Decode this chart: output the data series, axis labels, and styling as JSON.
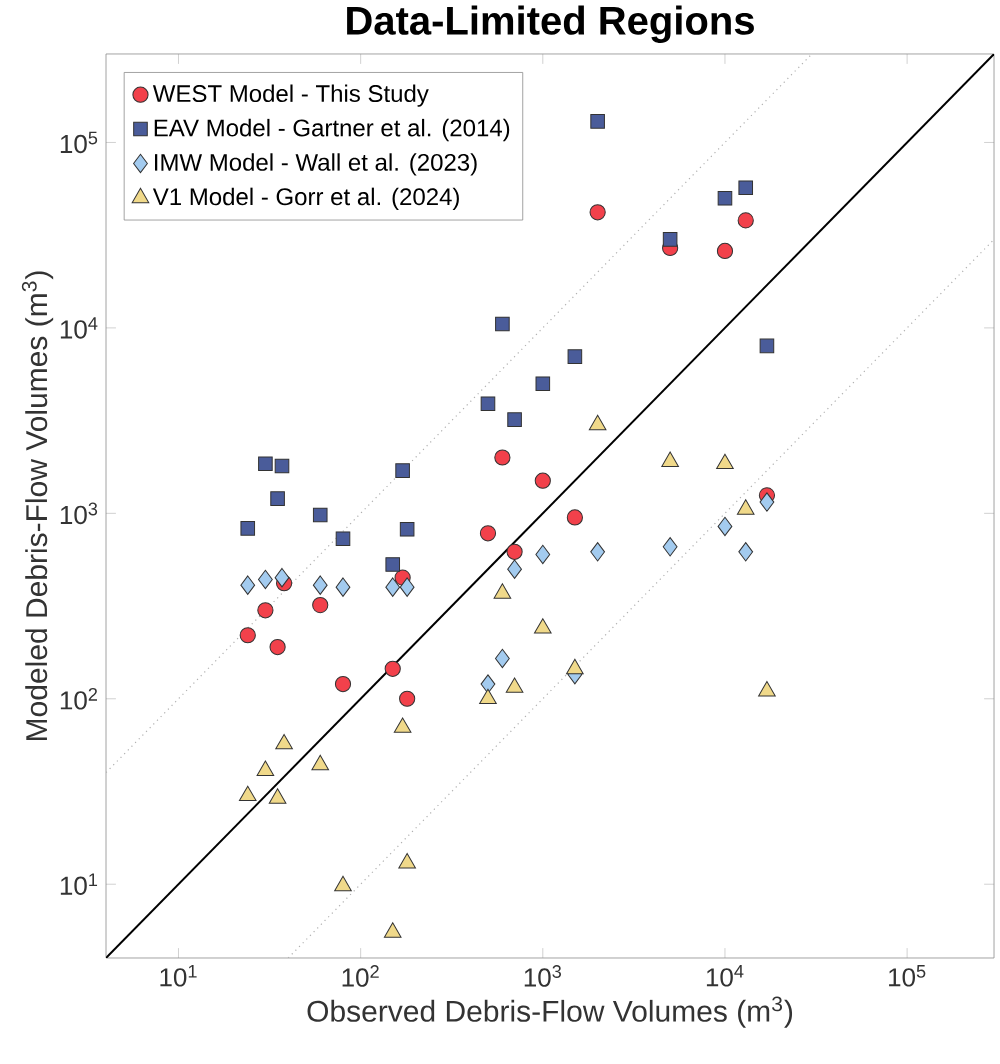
{
  "chart_data": {
    "type": "scatter",
    "title": "Data-Limited Regions",
    "xlabel": "Observed Debris-Flow Volumes (m$^{3}$)",
    "ylabel": "Modeled Debris-Flow Volumes (m$^{3}$)",
    "log": "xy",
    "xlim": [
      4,
      300000
    ],
    "ylim": [
      4,
      300000
    ],
    "xticks": [
      {
        "value": 10,
        "label": "10$^{1}$"
      },
      {
        "value": 100,
        "label": "10$^{2}$"
      },
      {
        "value": 1000,
        "label": "10$^{3}$"
      },
      {
        "value": 10000,
        "label": "10$^{4}$"
      },
      {
        "value": 100000,
        "label": "10$^{5}$"
      }
    ],
    "yticks": [
      {
        "value": 10,
        "label": "10$^{1}$"
      },
      {
        "value": 100,
        "label": "10$^{2}$"
      },
      {
        "value": 1000,
        "label": "10$^{3}$"
      },
      {
        "value": 10000,
        "label": "10$^{4}$"
      },
      {
        "value": 100000,
        "label": "10$^{5}$"
      }
    ],
    "grid": false,
    "legend": "top left",
    "series": [
      {
        "type": "line",
        "color": "#000000",
        "line_style": "solid",
        "marker": "none",
        "x": [
          4,
          300000
        ],
        "values": [
          4,
          300000
        ]
      },
      {
        "type": "line",
        "color": "#b0b0b0",
        "line_style": "dotted",
        "marker": "none",
        "x": [
          4,
          30000
        ],
        "values": [
          40,
          300000
        ]
      },
      {
        "type": "line",
        "color": "#b0b0b0",
        "line_style": "dotted",
        "marker": "none",
        "x": [
          40,
          300000
        ],
        "values": [
          4,
          30000
        ]
      },
      {
        "name": "WEST Model - This Study",
        "color": "#f2414b",
        "marker": "circle",
        "x": [
          24,
          30,
          35,
          38,
          60,
          80,
          150,
          170,
          180,
          500,
          600,
          700,
          1000,
          2000,
          5000,
          10000,
          13000,
          1500,
          17000
        ],
        "values": [
          220,
          300,
          190,
          420,
          320,
          120,
          145,
          450,
          100,
          780,
          2000,
          620,
          1500,
          42000,
          27000,
          26000,
          38000,
          950,
          1250
        ]
      },
      {
        "name": "EAV Model - Gartner et al. (2014)",
        "color": "#4a5c9a",
        "marker": "square",
        "x": [
          24,
          30,
          37,
          35,
          60,
          80,
          170,
          180,
          150,
          500,
          600,
          700,
          1000,
          2000,
          5000,
          10000,
          13000,
          1500,
          17000
        ],
        "values": [
          830,
          1850,
          1800,
          1200,
          980,
          730,
          1700,
          820,
          530,
          3900,
          10500,
          3200,
          5000,
          130000,
          30000,
          50000,
          57000,
          7000,
          8000
        ]
      },
      {
        "name": "IMW Model - Wall et al. (2023)",
        "color": "#a3cbef",
        "marker": "diamond",
        "x": [
          24,
          30,
          37,
          60,
          80,
          150,
          180,
          600,
          500,
          700,
          1000,
          2000,
          5000,
          10000,
          13000,
          17000,
          1500
        ],
        "values": [
          410,
          440,
          450,
          410,
          400,
          400,
          400,
          165,
          120,
          500,
          600,
          620,
          660,
          850,
          620,
          1150,
          135
        ]
      },
      {
        "name": "V1 Model - Gorr et al. (2024)",
        "color": "#f0d98a",
        "marker": "triangle",
        "x": [
          600,
          700,
          500,
          1000,
          2000,
          5000,
          10000,
          13000,
          1500,
          17000,
          170,
          38,
          60,
          30,
          24,
          35,
          180,
          80,
          150
        ],
        "values": [
          370,
          115,
          100,
          240,
          3000,
          1900,
          1850,
          1050,
          145,
          110,
          70,
          57,
          44,
          41,
          30,
          29,
          13,
          9.8,
          5.5
        ]
      }
    ]
  }
}
